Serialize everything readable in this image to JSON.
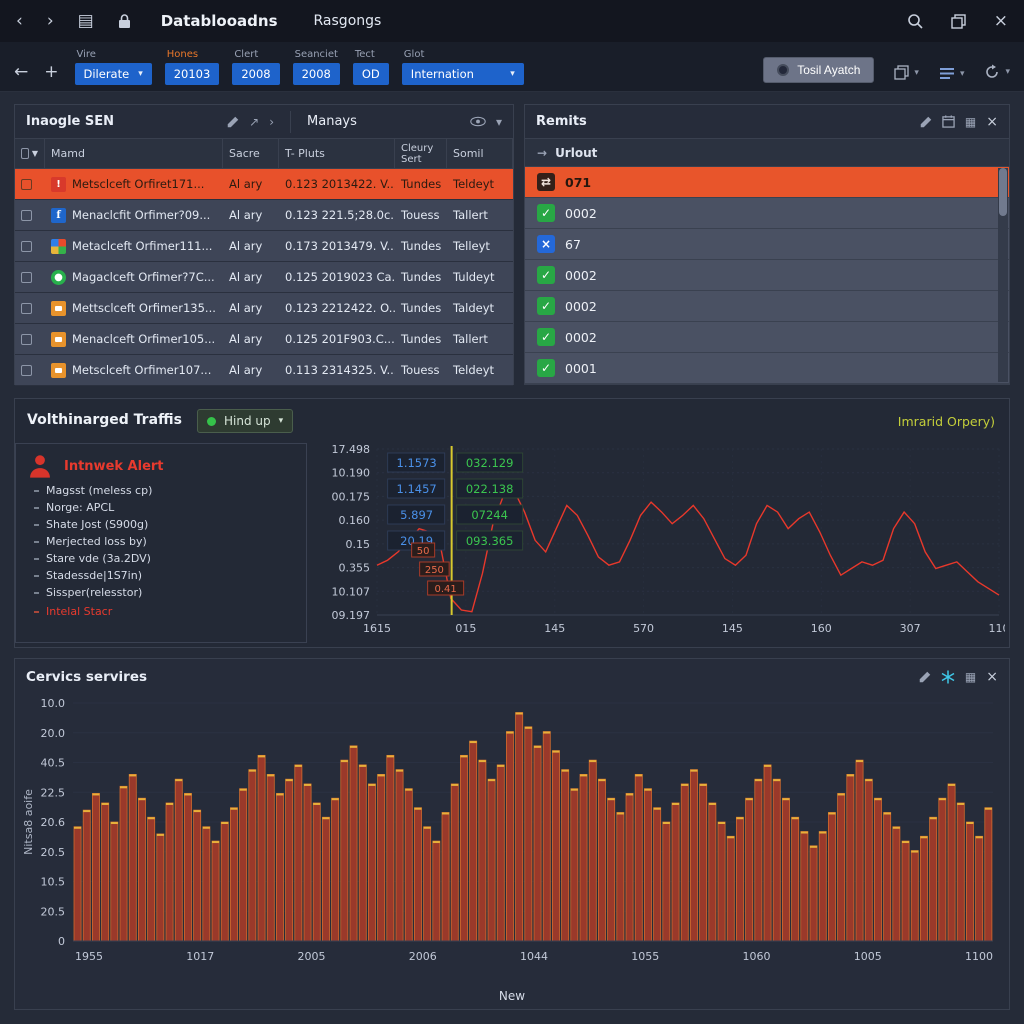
{
  "titlebar": {
    "title_primary": "Datablooadns",
    "title_secondary": "Rasgongs"
  },
  "toolbar": {
    "filters": [
      {
        "label": "Vire",
        "value": "Dilerate"
      },
      {
        "label": "Hones",
        "value": "20103"
      },
      {
        "label": "Clert",
        "value": "2008"
      },
      {
        "label": "Seanciet",
        "value": "2008"
      },
      {
        "label": "Tect",
        "value": "OD"
      },
      {
        "label": "Glot",
        "value": "Internation"
      }
    ],
    "apply_button": "Tosil Ayatch"
  },
  "events": {
    "title": "Inaogle SEN",
    "subtitle": "Manays",
    "columns": {
      "name": "Mamd",
      "source": "Sacre",
      "pluts": "T- Pluts",
      "cleury": "Cleury Sert",
      "somil": "Somil"
    },
    "row_icons": [
      "alert",
      "facebook",
      "windows",
      "status-green",
      "chat",
      "chat",
      "chat"
    ],
    "rows": [
      {
        "name": "Metsclceft Orfiret171...",
        "source": "Al ary",
        "pluts": "0.123 2013422. V...",
        "cleury": "Tundes",
        "somil": "Teldeyt"
      },
      {
        "name": "Menaclcfit Orfimer?09...",
        "source": "Al ary",
        "pluts": "0.123 221.5;28.0c..",
        "cleury": "Touess",
        "somil": "Tallert"
      },
      {
        "name": "Metaclceft Orfimer111...",
        "source": "Al ary",
        "pluts": "0.173 2013479. V...",
        "cleury": "Tundes",
        "somil": "Telleyt"
      },
      {
        "name": "Magaclceft Orfimer?7C...",
        "source": "Al ary",
        "pluts": "0.125 2019023 Ca.",
        "cleury": "Tundes",
        "somil": "Tuldeyt"
      },
      {
        "name": "Mettsclceft Orfimer135...",
        "source": "Al ary",
        "pluts": "0.123 2212422. O...",
        "cleury": "Tundes",
        "somil": "Taldeyt"
      },
      {
        "name": "Menaclceft Orfimer105...",
        "source": "Al ary",
        "pluts": "0.125 201F903.C...",
        "cleury": "Tundes",
        "somil": "Tallert"
      },
      {
        "name": "Metsclceft Orfimer107...",
        "source": "Al ary",
        "pluts": "0.113 2314325. V...",
        "cleury": "Touess",
        "somil": "Teldeyt"
      }
    ]
  },
  "remits": {
    "title": "Remits",
    "column_header": "Urlout",
    "row_icons": [
      "arrows",
      "check",
      "x",
      "check",
      "check",
      "check",
      "check"
    ],
    "rows": [
      {
        "value": "071"
      },
      {
        "value": "0002"
      },
      {
        "value": "67"
      },
      {
        "value": "0002"
      },
      {
        "value": "0002"
      },
      {
        "value": "0002"
      },
      {
        "value": "0001"
      }
    ]
  },
  "traffic": {
    "title": "Volthinarged Traffis",
    "mode_button": "Hind up",
    "right_label": "Imrarid Orpery)",
    "alert": {
      "title": "Intnwek Alert",
      "items": [
        "Magsst (meless cp)",
        "Norge: APCL",
        "Shate Jost (S900g)",
        "Merjected loss by)",
        "Stare vde (3a.2DV)",
        "Stadessde|1S7in)",
        "Sissper(relesstor)"
      ],
      "footer": "Intelal Stacr"
    }
  },
  "services": {
    "title": "Cervics servires",
    "footer": "New"
  },
  "colors": {
    "accent_orange": "#e8512b",
    "accent_blue": "#1e63cb",
    "accent_green": "#28a745",
    "accent_red": "#e5372b",
    "cursor_yellow": "#d8c92e",
    "lime_label": "#c3ce3a"
  },
  "chart_data": [
    {
      "type": "line",
      "title": "Volthinarged Traffis",
      "y_ticks": [
        "17.498",
        "10.190",
        "00.175",
        "0.160",
        "0.15",
        "0.355",
        "10.107",
        "09.197"
      ],
      "x_ticks": [
        "1615",
        "015",
        "145",
        "570",
        "145",
        "160",
        "307",
        "110"
      ],
      "cursor_frac": 0.12,
      "cursor_color": "#d8c92e",
      "grid": true,
      "legend_position": "none",
      "value_table": {
        "blue": [
          "1.1573",
          "1.1457",
          "5.897",
          "20.19"
        ],
        "green": [
          "032.129",
          "022.138",
          "07244",
          "093.365"
        ]
      },
      "annotations": [
        "50",
        "250",
        "0.41"
      ],
      "series": [
        {
          "name": "traffic",
          "color": "#e8382b",
          "values": [
            0.3,
            0.33,
            0.38,
            0.45,
            0.52,
            0.5,
            0.42,
            0.1,
            0.03,
            0.02,
            0.25,
            0.55,
            0.72,
            0.75,
            0.62,
            0.45,
            0.38,
            0.52,
            0.66,
            0.6,
            0.48,
            0.35,
            0.3,
            0.32,
            0.45,
            0.6,
            0.68,
            0.62,
            0.55,
            0.6,
            0.66,
            0.58,
            0.46,
            0.34,
            0.3,
            0.36,
            0.55,
            0.66,
            0.62,
            0.52,
            0.58,
            0.62,
            0.5,
            0.36,
            0.24,
            0.28,
            0.32,
            0.3,
            0.33,
            0.52,
            0.62,
            0.55,
            0.38,
            0.28,
            0.3,
            0.32,
            0.26,
            0.2,
            0.16,
            0.12
          ]
        }
      ]
    },
    {
      "type": "bar",
      "title": "Cervics servires",
      "ylabel": "Nitsa8 aoife",
      "xlabel": "New",
      "y_ticks": [
        "10.0",
        "20.0",
        "40.5",
        "22.5",
        "20.6",
        "20.5",
        "10.5",
        "20.5",
        "0"
      ],
      "x_ticks": [
        "1955",
        "1017",
        "2005",
        "2006",
        "1044",
        "1055",
        "1060",
        "1005",
        "1100"
      ],
      "bar_color": "#9a392a",
      "bar_stroke": "#d06a2e",
      "bar_cap_color": "#e8b03a",
      "value_scale_max": 10,
      "values": [
        4.8,
        5.5,
        6.2,
        5.8,
        5.0,
        6.5,
        7.0,
        6.0,
        5.2,
        4.5,
        5.8,
        6.8,
        6.2,
        5.5,
        4.8,
        4.2,
        5.0,
        5.6,
        6.4,
        7.2,
        7.8,
        7.0,
        6.2,
        6.8,
        7.4,
        6.6,
        5.8,
        5.2,
        6.0,
        7.6,
        8.2,
        7.4,
        6.6,
        7.0,
        7.8,
        7.2,
        6.4,
        5.6,
        4.8,
        4.2,
        5.4,
        6.6,
        7.8,
        8.4,
        7.6,
        6.8,
        7.4,
        8.8,
        9.6,
        9.0,
        8.2,
        8.8,
        8.0,
        7.2,
        6.4,
        7.0,
        7.6,
        6.8,
        6.0,
        5.4,
        6.2,
        7.0,
        6.4,
        5.6,
        5.0,
        5.8,
        6.6,
        7.2,
        6.6,
        5.8,
        5.0,
        4.4,
        5.2,
        6.0,
        6.8,
        7.4,
        6.8,
        6.0,
        5.2,
        4.6,
        4.0,
        4.6,
        5.4,
        6.2,
        7.0,
        7.6,
        6.8,
        6.0,
        5.4,
        4.8,
        4.2,
        3.8,
        4.4,
        5.2,
        6.0,
        6.6,
        5.8,
        5.0,
        4.4,
        5.6
      ]
    }
  ]
}
